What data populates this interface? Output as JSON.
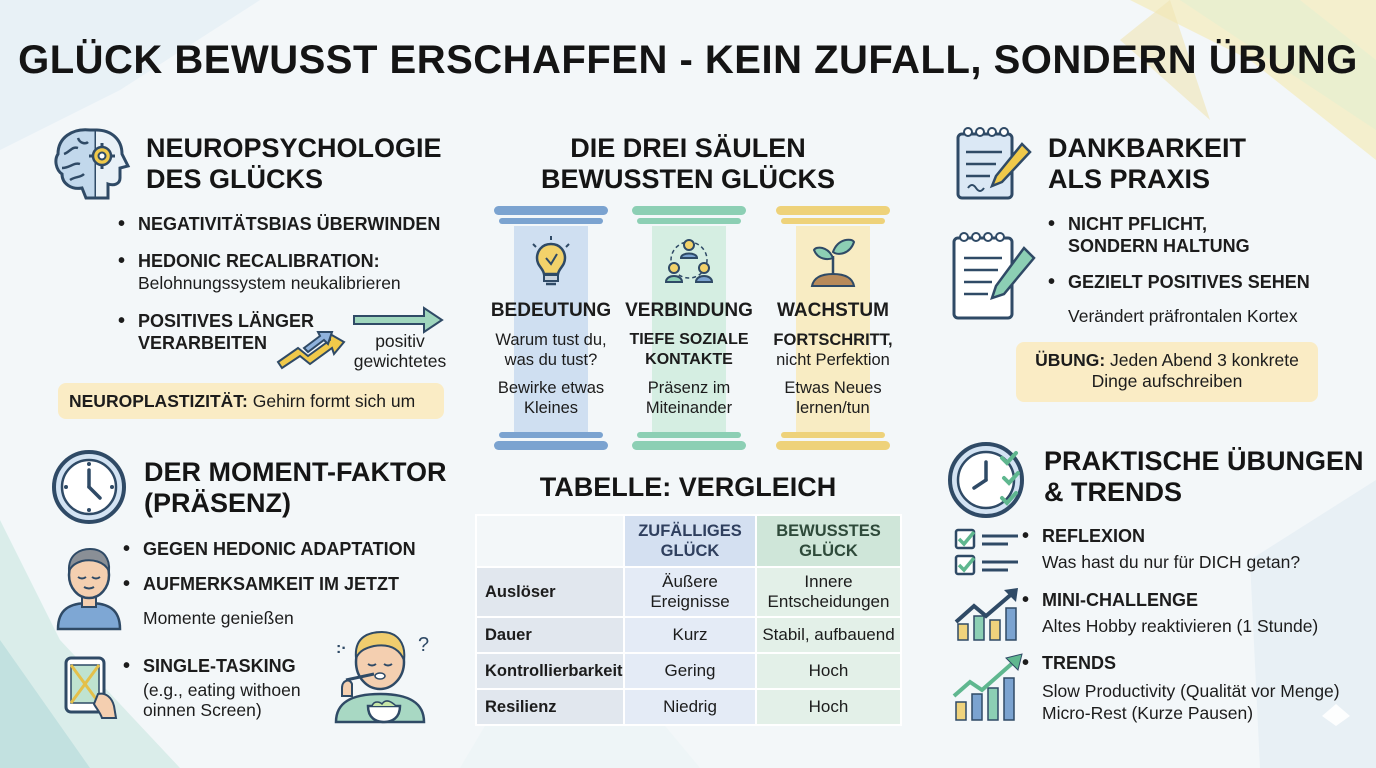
{
  "title": "GLÜCK BEWUSST ERSCHAFFEN - KEIN ZUFALL, SONDERN ÜBUNG",
  "neuro": {
    "title_line1": "NEUROPSYCHOLOGIE",
    "title_line2": "DES GLÜCKS",
    "bullet1": "NEGATIVITÄTSBIAS ÜBERWINDEN",
    "bullet2": "HEDONIC RECALIBRATION:",
    "bullet2_sub": "Belohnungssystem neukalibrieren",
    "bullet3_line1": "POSITIVES LÄNGER",
    "bullet3_line2": "VERARBEITEN",
    "arrow_label1": "positiv",
    "arrow_label2": "gewichtetes",
    "pill_bold": "NEUROPLASTIZITÄT:",
    "pill_text": "Gehirn formt sich um"
  },
  "moment": {
    "title_line1": "DER MOMENT-FAKTOR",
    "title_line2": "(PRÄSENZ)",
    "bullet1": "GEGEN HEDONIC ADAPTATION",
    "bullet2": "AUFMERKSAMKEIT IM JETZT",
    "bullet2_sub": "Momente genießen",
    "single_title": "SINGLE-TASKING",
    "single_line1": "(e.g., eating withoen",
    "single_line2": "oinnen Screen)",
    "thought_marks": ":·",
    "question_mark": "?"
  },
  "pillars": {
    "title_line1": "DIE DREI SÄULEN",
    "title_line2": "BEWUSSTEN GLÜCKS",
    "items": [
      {
        "label": "BEDEUTUNG",
        "line1": "Warum tust du,",
        "line2": "was du tust?",
        "line3": "Bewirke etwas",
        "line4": "Kleines",
        "color": "#7ba3d0"
      },
      {
        "label": "VERBINDUNG",
        "line1": "TIEFE SOZIALE",
        "line2": "KONTAKTE",
        "line3": "Präsenz im",
        "line4": "Miteinander",
        "color": "#8ccfb4"
      },
      {
        "label": "WACHSTUM",
        "line1": "FORTSCHRITT,",
        "line2": "nicht Perfektion",
        "line3": "Etwas Neues",
        "line4": "lernen/tun",
        "color": "#eed27a"
      }
    ]
  },
  "table": {
    "title": "TABELLE: VERGLEICH",
    "col1_line1": "ZUFÄLLIGES",
    "col1_line2": "GLÜCK",
    "col2_line1": "BEWUSSTES",
    "col2_line2": "GLÜCK",
    "rows": [
      {
        "label": "Auslöser",
        "a1": "Äußere",
        "a2": "Ereignisse",
        "b1": "Innere",
        "b2": "Entscheidungen"
      },
      {
        "label": "Dauer",
        "a1": "Kurz",
        "b1": "Stabil, aufbauend"
      },
      {
        "label": "Kontrollierbarkeit",
        "a1": "Gering",
        "b1": "Hoch"
      },
      {
        "label": "Resilienz",
        "a1": "Niedrig",
        "b1": "Hoch"
      }
    ]
  },
  "gratitude": {
    "title_line1": "DANKBARKEIT",
    "title_line2": "ALS PRAXIS",
    "bullet1_line1": "NICHT PFLICHT,",
    "bullet1_line2": "SONDERN HALTUNG",
    "bullet2": "GEZIELT POSITIVES SEHEN",
    "bullet2_sub": "Verändert präfrontalen Kortex",
    "pill_bold": "ÜBUNG:",
    "pill_text1": "Jeden Abend 3 konkrete",
    "pill_text2": "Dinge aufschreiben"
  },
  "practice": {
    "title_line1": "PRAKTISCHE ÜBUNGEN",
    "title_line2": "& TRENDS",
    "item1_title": "REFLEXION",
    "item1_text": "Was hast du nur für DICH getan?",
    "item2_title": "MINI-CHALLENGE",
    "item2_text": "Altes Hobby reaktivieren (1 Stunde)",
    "item3_title": "TRENDS",
    "item3_text1": "Slow Productivity (Qualität vor Menge)",
    "item3_text2": "Micro-Rest (Kurze Pausen)"
  },
  "colors": {
    "blue": "#6f9bd0",
    "green": "#8fcfb2",
    "yellow": "#f0d37c",
    "pill": "#faecc5",
    "icon_dark": "#2f4a66"
  },
  "icons": [
    "brain-gear-icon",
    "clock-icon",
    "person-meditating-icon",
    "person-eating-icon",
    "tablet-icon",
    "lightbulb-icon",
    "people-network-icon",
    "plant-sprout-icon",
    "notepad-pencil-icon",
    "clipboard-pencil-icon",
    "clock-checklist-icon",
    "checklist-icon",
    "growth-chart-icon",
    "trend-chart-icon",
    "arrow-icon"
  ]
}
